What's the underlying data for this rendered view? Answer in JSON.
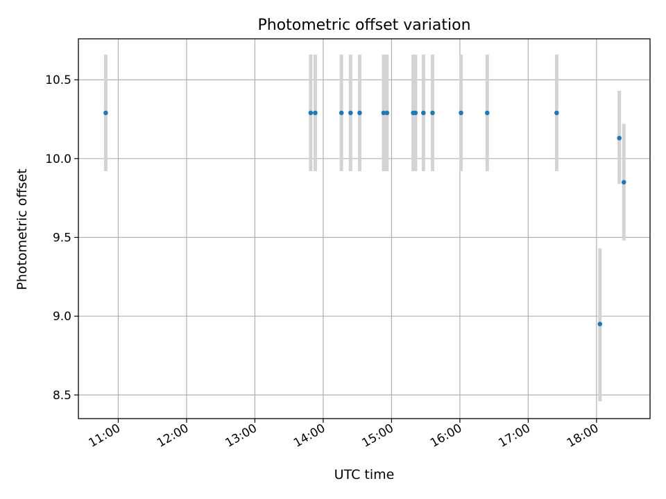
{
  "chart_data": {
    "type": "scatter",
    "title": "Photometric offset variation",
    "xlabel": "UTC time",
    "ylabel": "Photometric offset",
    "grid": true,
    "x_ticks": [
      "11:00",
      "12:00",
      "13:00",
      "14:00",
      "15:00",
      "16:00",
      "17:00",
      "18:00"
    ],
    "y_ticks": [
      "8.5",
      "9.0",
      "9.5",
      "10.0",
      "10.5"
    ],
    "xlim": [
      "10:25",
      "18:47"
    ],
    "ylim": [
      8.35,
      10.76
    ],
    "colors": {
      "point": "#1f77b4",
      "errorbar": "#d3d3d3",
      "grid": "#b0b0b0"
    },
    "series": [
      {
        "points": [
          {
            "x": "10:49",
            "y": 10.29,
            "ylow": 9.92,
            "yhigh": 10.66
          },
          {
            "x": "13:49",
            "y": 10.29,
            "ylow": 9.92,
            "yhigh": 10.66
          },
          {
            "x": "13:53",
            "y": 10.29,
            "ylow": 9.92,
            "yhigh": 10.66
          },
          {
            "x": "14:16",
            "y": 10.29,
            "ylow": 9.92,
            "yhigh": 10.66
          },
          {
            "x": "14:24",
            "y": 10.29,
            "ylow": 9.92,
            "yhigh": 10.66
          },
          {
            "x": "14:32",
            "y": 10.29,
            "ylow": 9.92,
            "yhigh": 10.66
          },
          {
            "x": "14:53",
            "y": 10.29,
            "ylow": 9.92,
            "yhigh": 10.66
          },
          {
            "x": "14:56",
            "y": 10.29,
            "ylow": 9.92,
            "yhigh": 10.66
          },
          {
            "x": "15:19",
            "y": 10.29,
            "ylow": 9.92,
            "yhigh": 10.66
          },
          {
            "x": "15:21",
            "y": 10.29,
            "ylow": 9.92,
            "yhigh": 10.66
          },
          {
            "x": "15:28",
            "y": 10.29,
            "ylow": 9.92,
            "yhigh": 10.66
          },
          {
            "x": "15:36",
            "y": 10.29,
            "ylow": 9.92,
            "yhigh": 10.66
          },
          {
            "x": "16:01",
            "y": 10.29,
            "ylow": 9.92,
            "yhigh": 10.66
          },
          {
            "x": "16:24",
            "y": 10.29,
            "ylow": 9.92,
            "yhigh": 10.66
          },
          {
            "x": "17:25",
            "y": 10.29,
            "ylow": 9.92,
            "yhigh": 10.66
          },
          {
            "x": "18:03",
            "y": 8.95,
            "ylow": 8.46,
            "yhigh": 9.43
          },
          {
            "x": "18:20",
            "y": 10.13,
            "ylow": 9.84,
            "yhigh": 10.43
          },
          {
            "x": "18:24",
            "y": 9.85,
            "ylow": 9.48,
            "yhigh": 10.22
          }
        ]
      }
    ]
  }
}
